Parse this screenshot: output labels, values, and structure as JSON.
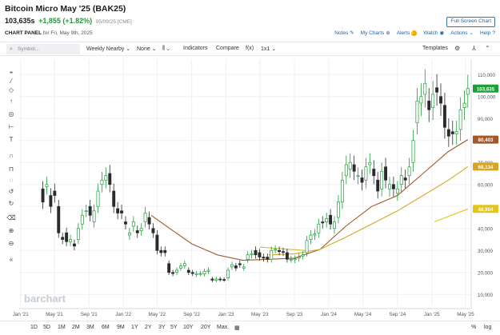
{
  "header": {
    "title": "Bitcoin Micro May '25 (BAK25)",
    "last_price": "103,635s",
    "change": "+1,855 (+1.82%)",
    "date_exchange": "05/09/25 [CME]",
    "full_screen_label": "Full Screen Chart",
    "panel_label": "CHART PANEL",
    "panel_date": "for Fri, May 9th, 2025",
    "links": {
      "notes": "Notes",
      "my_charts": "My Charts",
      "alerts": "Alerts",
      "alerts_badge": "1",
      "watch": "Watch",
      "actions": "Actions",
      "help": "Help"
    }
  },
  "toolbar": {
    "search_placeholder": "Symbol...",
    "period": "Weekly Nearby",
    "studies": "None",
    "indicators": "Indicators",
    "compare": "Compare",
    "fx": "f(x)",
    "layout": "1x1",
    "templates": "Templates"
  },
  "bottom": {
    "ranges": [
      "1D",
      "5D",
      "1M",
      "2M",
      "3M",
      "6M",
      "9M",
      "1Y",
      "2Y",
      "3Y",
      "5Y",
      "10Y",
      "20Y",
      "Max"
    ],
    "percent": "%",
    "log": "log"
  },
  "chart_data": {
    "type": "candlestick",
    "watermark": "barchart",
    "x_ticks": [
      "Jan '21",
      "May '21",
      "Sep '21",
      "Jan '22",
      "May '22",
      "Sep '22",
      "Jan '23",
      "May '23",
      "Sep '23",
      "Jan '24",
      "May '24",
      "Sep '24",
      "Jan '25",
      "May '25"
    ],
    "y_ticks": [
      10000,
      20000,
      30000,
      40000,
      50000,
      60000,
      70000,
      80000,
      90000,
      100000,
      110000
    ],
    "y_tick_labels": [
      "10,000",
      "20,000",
      "30,000",
      "40,000",
      "50,000",
      "60,000",
      "70,000",
      "80,000",
      "90,000",
      "100,000",
      "110,000"
    ],
    "ylim": [
      5000,
      117000
    ],
    "x_range": [
      "2020-12-27",
      "2025-05-21"
    ],
    "price_tag": {
      "label": "103,635",
      "value": 103635,
      "color": "#1f9d3a"
    },
    "candles": [
      [
        "2021-03-21",
        58000,
        52000
      ],
      [
        "2021-04-04",
        59000,
        60000
      ],
      [
        "2021-04-18",
        55000,
        50000
      ],
      [
        "2021-05-02",
        57000,
        55000
      ],
      [
        "2021-05-16",
        50000,
        38000
      ],
      [
        "2021-05-30",
        36000,
        35000
      ],
      [
        "2021-06-13",
        38000,
        34000
      ],
      [
        "2021-06-27",
        34000,
        35000
      ],
      [
        "2021-07-11",
        33000,
        32000
      ],
      [
        "2021-07-25",
        35000,
        40000
      ],
      [
        "2021-08-08",
        42000,
        46000
      ],
      [
        "2021-08-22",
        48000,
        48000
      ],
      [
        "2021-09-05",
        50000,
        46000
      ],
      [
        "2021-09-19",
        43000,
        48000
      ],
      [
        "2021-10-03",
        50000,
        57000
      ],
      [
        "2021-10-17",
        60000,
        62000
      ],
      [
        "2021-10-31",
        62000,
        64000
      ],
      [
        "2021-11-14",
        65000,
        60000
      ],
      [
        "2021-11-28",
        57000,
        50000
      ],
      [
        "2021-12-12",
        49000,
        47000
      ],
      [
        "2021-12-26",
        48000,
        47000
      ],
      [
        "2022-01-09",
        43000,
        42000
      ],
      [
        "2022-01-23",
        37000,
        38000
      ],
      [
        "2022-02-06",
        41000,
        43000
      ],
      [
        "2022-02-20",
        39000,
        38000
      ],
      [
        "2022-03-06",
        39000,
        40000
      ],
      [
        "2022-03-20",
        43000,
        47000
      ],
      [
        "2022-04-03",
        45000,
        42000
      ],
      [
        "2022-04-17",
        40000,
        38000
      ],
      [
        "2022-05-01",
        37000,
        30000
      ],
      [
        "2022-05-15",
        30000,
        29000
      ],
      [
        "2022-05-29",
        30000,
        29000
      ],
      [
        "2022-06-12",
        24000,
        20000
      ],
      [
        "2022-06-26",
        20000,
        19500
      ],
      [
        "2022-07-10",
        20000,
        21000
      ],
      [
        "2022-07-24",
        22000,
        23000
      ],
      [
        "2022-08-07",
        23000,
        24000
      ],
      [
        "2022-08-21",
        21000,
        20000
      ],
      [
        "2022-09-04",
        20000,
        19500
      ],
      [
        "2022-09-18",
        19000,
        19500
      ],
      [
        "2022-10-02",
        19500,
        19500
      ],
      [
        "2022-10-16",
        19300,
        20500
      ],
      [
        "2022-10-30",
        20500,
        21000
      ],
      [
        "2022-11-13",
        17000,
        16500
      ],
      [
        "2022-11-27",
        16500,
        17000
      ],
      [
        "2022-12-11",
        17000,
        16800
      ],
      [
        "2022-12-25",
        16800,
        16700
      ],
      [
        "2023-01-08",
        17500,
        21000
      ],
      [
        "2023-01-22",
        22500,
        23500
      ],
      [
        "2023-02-05",
        23000,
        22000
      ],
      [
        "2023-02-19",
        24000,
        23500
      ],
      [
        "2023-03-05",
        22000,
        22500
      ],
      [
        "2023-03-19",
        26000,
        28000
      ],
      [
        "2023-04-02",
        28000,
        28500
      ],
      [
        "2023-04-16",
        30000,
        28000
      ],
      [
        "2023-04-30",
        29000,
        27000
      ],
      [
        "2023-05-14",
        27000,
        26500
      ],
      [
        "2023-05-28",
        27000,
        26000
      ],
      [
        "2023-06-11",
        26000,
        30000
      ],
      [
        "2023-06-25",
        30500,
        30500
      ],
      [
        "2023-07-09",
        30000,
        29500
      ],
      [
        "2023-07-23",
        29500,
        29200
      ],
      [
        "2023-08-06",
        29000,
        26000
      ],
      [
        "2023-08-20",
        26000,
        26000
      ],
      [
        "2023-09-03",
        25800,
        26200
      ],
      [
        "2023-09-17",
        26500,
        27000
      ],
      [
        "2023-10-01",
        27500,
        28000
      ],
      [
        "2023-10-15",
        29000,
        34500
      ],
      [
        "2023-10-29",
        35000,
        37000
      ],
      [
        "2023-11-12",
        37000,
        37500
      ],
      [
        "2023-11-26",
        38000,
        42000
      ],
      [
        "2023-12-10",
        43000,
        42500
      ],
      [
        "2023-12-24",
        43000,
        44500
      ],
      [
        "2024-01-07",
        46000,
        42000
      ],
      [
        "2024-01-21",
        40000,
        43000
      ],
      [
        "2024-02-04",
        45000,
        52000
      ],
      [
        "2024-02-18",
        52000,
        62000
      ],
      [
        "2024-03-03",
        64000,
        69000
      ],
      [
        "2024-03-17",
        67000,
        70000
      ],
      [
        "2024-03-31",
        69000,
        66000
      ],
      [
        "2024-04-14",
        64000,
        64000
      ],
      [
        "2024-04-28",
        63000,
        61000
      ],
      [
        "2024-05-12",
        62000,
        68000
      ],
      [
        "2024-05-26",
        69000,
        70000
      ],
      [
        "2024-06-09",
        67000,
        64000
      ],
      [
        "2024-06-23",
        62000,
        57000
      ],
      [
        "2024-07-07",
        58000,
        66000
      ],
      [
        "2024-07-21",
        68000,
        62000
      ],
      [
        "2024-08-04",
        58000,
        60000
      ],
      [
        "2024-08-18",
        60000,
        58000
      ],
      [
        "2024-09-01",
        56000,
        58000
      ],
      [
        "2024-09-15",
        60000,
        64000
      ],
      [
        "2024-09-29",
        63000,
        62000
      ],
      [
        "2024-10-13",
        64000,
        68000
      ],
      [
        "2024-10-27",
        70000,
        80000
      ],
      [
        "2024-11-10",
        88000,
        98000
      ],
      [
        "2024-11-24",
        97000,
        100000
      ],
      [
        "2024-12-08",
        101000,
        106000
      ],
      [
        "2024-12-22",
        98000,
        94000
      ],
      [
        "2025-01-05",
        95000,
        101000
      ],
      [
        "2025-01-19",
        104000,
        102000
      ],
      [
        "2025-02-02",
        100000,
        97000
      ],
      [
        "2025-02-16",
        96000,
        86000
      ],
      [
        "2025-03-02",
        85000,
        82000
      ],
      [
        "2025-03-16",
        84000,
        83000
      ],
      [
        "2025-03-30",
        83000,
        84000
      ],
      [
        "2025-04-13",
        85000,
        94000
      ],
      [
        "2025-04-27",
        95000,
        97000
      ],
      [
        "2025-05-09",
        101000,
        103635
      ]
    ],
    "studies": [
      {
        "tag": "80,403",
        "tag_value": 80403,
        "color": "#a3582a",
        "points": [
          [
            "2022-04-10",
            46000
          ],
          [
            "2022-06-15",
            40000
          ],
          [
            "2022-09-01",
            33000
          ],
          [
            "2022-12-01",
            28000
          ],
          [
            "2023-03-01",
            25500
          ],
          [
            "2023-06-01",
            26000
          ],
          [
            "2023-09-01",
            26500
          ],
          [
            "2023-12-01",
            30500
          ],
          [
            "2024-03-01",
            41000
          ],
          [
            "2024-06-01",
            50000
          ],
          [
            "2024-09-01",
            55000
          ],
          [
            "2024-12-01",
            65000
          ],
          [
            "2025-03-01",
            75000
          ],
          [
            "2025-05-09",
            80403
          ]
        ]
      },
      {
        "tag": "68,134",
        "tag_value": 68134,
        "color": "#d6a725",
        "points": [
          [
            "2023-06-01",
            28000
          ],
          [
            "2023-09-01",
            28500
          ],
          [
            "2023-12-01",
            30500
          ],
          [
            "2024-03-01",
            36000
          ],
          [
            "2024-06-01",
            42000
          ],
          [
            "2024-09-01",
            48000
          ],
          [
            "2024-12-01",
            55000
          ],
          [
            "2025-03-01",
            62000
          ],
          [
            "2025-05-09",
            68134
          ]
        ]
      },
      {
        "tag": "48,904",
        "tag_value": 48904,
        "color": "#e3c51a",
        "points": [
          [
            "2025-01-10",
            43000
          ],
          [
            "2025-05-09",
            48904
          ]
        ]
      }
    ],
    "trendline": {
      "color": "#c9b91c",
      "points": [
        [
          "2023-05-01",
          31500
        ],
        [
          "2023-10-10",
          30000
        ]
      ]
    }
  }
}
